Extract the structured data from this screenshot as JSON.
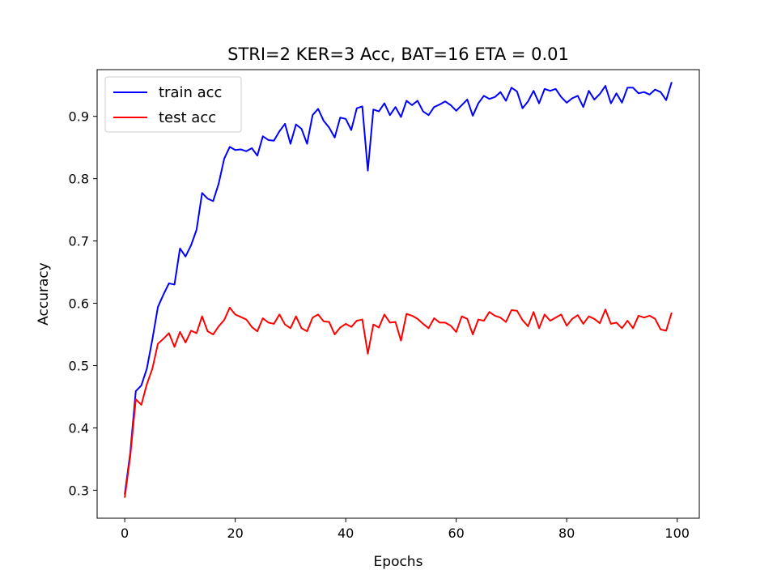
{
  "chart_data": {
    "type": "line",
    "title": "STRI=2 KER=3 Acc, BAT=16 ETA = 0.01",
    "xlabel": "Epochs",
    "ylabel": "Accuracy",
    "xlim": [
      -5,
      104
    ],
    "ylim": [
      0.255,
      0.975
    ],
    "xticks": [
      0,
      20,
      40,
      60,
      80,
      100
    ],
    "yticks": [
      0.3,
      0.4,
      0.5,
      0.6,
      0.7,
      0.8,
      0.9
    ],
    "xtick_labels": [
      "0",
      "20",
      "40",
      "60",
      "80",
      "100"
    ],
    "ytick_labels": [
      "0.3",
      "0.4",
      "0.5",
      "0.6",
      "0.7",
      "0.8",
      "0.9"
    ],
    "grid": false,
    "legend_position": "top-left",
    "series": [
      {
        "name": "train acc",
        "color": "#0000ff",
        "x": [
          0,
          1,
          2,
          3,
          4,
          5,
          6,
          7,
          8,
          9,
          10,
          11,
          12,
          13,
          14,
          15,
          16,
          17,
          18,
          19,
          20,
          21,
          22,
          23,
          24,
          25,
          26,
          27,
          28,
          29,
          30,
          31,
          32,
          33,
          34,
          35,
          36,
          37,
          38,
          39,
          40,
          41,
          42,
          43,
          44,
          45,
          46,
          47,
          48,
          49,
          50,
          51,
          52,
          53,
          54,
          55,
          56,
          57,
          58,
          59,
          60,
          61,
          62,
          63,
          64,
          65,
          66,
          67,
          68,
          69,
          70,
          71,
          72,
          73,
          74,
          75,
          76,
          77,
          78,
          79,
          80,
          81,
          82,
          83,
          84,
          85,
          86,
          87,
          88,
          89,
          90,
          91,
          92,
          93,
          94,
          95,
          96,
          97,
          98,
          99
        ],
        "values": [
          0.293,
          0.36,
          0.459,
          0.468,
          0.495,
          0.542,
          0.594,
          0.614,
          0.632,
          0.63,
          0.688,
          0.675,
          0.693,
          0.718,
          0.777,
          0.768,
          0.764,
          0.792,
          0.832,
          0.851,
          0.846,
          0.847,
          0.844,
          0.849,
          0.837,
          0.868,
          0.862,
          0.861,
          0.876,
          0.888,
          0.856,
          0.887,
          0.88,
          0.856,
          0.902,
          0.912,
          0.893,
          0.882,
          0.866,
          0.898,
          0.896,
          0.878,
          0.913,
          0.916,
          0.813,
          0.911,
          0.908,
          0.921,
          0.902,
          0.915,
          0.899,
          0.925,
          0.918,
          0.925,
          0.908,
          0.902,
          0.915,
          0.919,
          0.924,
          0.918,
          0.909,
          0.918,
          0.927,
          0.901,
          0.921,
          0.933,
          0.928,
          0.931,
          0.939,
          0.925,
          0.946,
          0.94,
          0.913,
          0.924,
          0.941,
          0.921,
          0.944,
          0.941,
          0.944,
          0.931,
          0.922,
          0.929,
          0.933,
          0.915,
          0.941,
          0.927,
          0.936,
          0.949,
          0.921,
          0.937,
          0.922,
          0.946,
          0.946,
          0.937,
          0.939,
          0.935,
          0.943,
          0.939,
          0.926,
          0.955
        ]
      },
      {
        "name": "test acc",
        "color": "#ff0000",
        "x": [
          0,
          1,
          2,
          3,
          4,
          5,
          6,
          7,
          8,
          9,
          10,
          11,
          12,
          13,
          14,
          15,
          16,
          17,
          18,
          19,
          20,
          21,
          22,
          23,
          24,
          25,
          26,
          27,
          28,
          29,
          30,
          31,
          32,
          33,
          34,
          35,
          36,
          37,
          38,
          39,
          40,
          41,
          42,
          43,
          44,
          45,
          46,
          47,
          48,
          49,
          50,
          51,
          52,
          53,
          54,
          55,
          56,
          57,
          58,
          59,
          60,
          61,
          62,
          63,
          64,
          65,
          66,
          67,
          68,
          69,
          70,
          71,
          72,
          73,
          74,
          75,
          76,
          77,
          78,
          79,
          80,
          81,
          82,
          83,
          84,
          85,
          86,
          87,
          88,
          89,
          90,
          91,
          92,
          93,
          94,
          95,
          96,
          97,
          98,
          99
        ],
        "values": [
          0.288,
          0.355,
          0.446,
          0.437,
          0.47,
          0.495,
          0.535,
          0.543,
          0.552,
          0.53,
          0.554,
          0.537,
          0.556,
          0.552,
          0.579,
          0.555,
          0.55,
          0.563,
          0.573,
          0.593,
          0.582,
          0.578,
          0.574,
          0.562,
          0.555,
          0.576,
          0.569,
          0.567,
          0.582,
          0.566,
          0.56,
          0.579,
          0.56,
          0.555,
          0.577,
          0.582,
          0.571,
          0.57,
          0.55,
          0.561,
          0.567,
          0.562,
          0.572,
          0.574,
          0.519,
          0.566,
          0.561,
          0.582,
          0.569,
          0.57,
          0.54,
          0.583,
          0.58,
          0.575,
          0.567,
          0.56,
          0.576,
          0.569,
          0.569,
          0.564,
          0.554,
          0.579,
          0.575,
          0.55,
          0.574,
          0.572,
          0.586,
          0.58,
          0.577,
          0.57,
          0.589,
          0.588,
          0.573,
          0.563,
          0.586,
          0.56,
          0.582,
          0.572,
          0.577,
          0.582,
          0.564,
          0.575,
          0.581,
          0.567,
          0.579,
          0.575,
          0.568,
          0.59,
          0.567,
          0.569,
          0.56,
          0.572,
          0.56,
          0.58,
          0.577,
          0.58,
          0.575,
          0.558,
          0.556,
          0.585
        ]
      }
    ]
  }
}
